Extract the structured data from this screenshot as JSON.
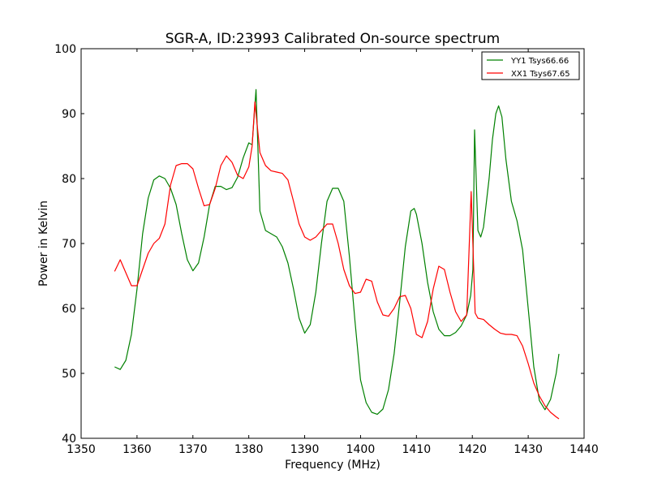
{
  "chart_data": {
    "type": "line",
    "title": "SGR-A, ID:23993 Calibrated On-source spectrum",
    "xlabel": "Frequency (MHz)",
    "ylabel": "Power in Kelvin",
    "xlim": [
      1350,
      1440
    ],
    "ylim": [
      40,
      100
    ],
    "xticks": [
      1350,
      1360,
      1370,
      1380,
      1390,
      1400,
      1410,
      1420,
      1430,
      1440
    ],
    "yticks": [
      40,
      50,
      60,
      70,
      80,
      90,
      100
    ],
    "grid": false,
    "legend_position": "top-right",
    "series": [
      {
        "name": "YY1 Tsys66.66",
        "color": "#008000",
        "points": [
          [
            1356,
            51.0
          ],
          [
            1357,
            50.6
          ],
          [
            1358,
            52.0
          ],
          [
            1359,
            56.0
          ],
          [
            1360,
            63.0
          ],
          [
            1361,
            71.5
          ],
          [
            1362,
            77.0
          ],
          [
            1363,
            79.8
          ],
          [
            1364,
            80.4
          ],
          [
            1365,
            80.0
          ],
          [
            1366,
            78.5
          ],
          [
            1367,
            76.0
          ],
          [
            1368,
            71.5
          ],
          [
            1369,
            67.5
          ],
          [
            1370,
            65.8
          ],
          [
            1371,
            67.0
          ],
          [
            1372,
            71.0
          ],
          [
            1373,
            76.0
          ],
          [
            1374,
            78.8
          ],
          [
            1375,
            78.8
          ],
          [
            1376,
            78.3
          ],
          [
            1377,
            78.6
          ],
          [
            1378,
            80.2
          ],
          [
            1379,
            83.2
          ],
          [
            1380,
            85.5
          ],
          [
            1380.6,
            85.2
          ],
          [
            1381.3,
            93.7
          ],
          [
            1382,
            75.0
          ],
          [
            1383,
            72.0
          ],
          [
            1384,
            71.5
          ],
          [
            1385,
            71.0
          ],
          [
            1386,
            69.5
          ],
          [
            1387,
            67.0
          ],
          [
            1388,
            63.0
          ],
          [
            1389,
            58.5
          ],
          [
            1390,
            56.2
          ],
          [
            1391,
            57.5
          ],
          [
            1392,
            62.5
          ],
          [
            1393,
            70.0
          ],
          [
            1394,
            76.5
          ],
          [
            1395,
            78.5
          ],
          [
            1396,
            78.5
          ],
          [
            1397,
            76.5
          ],
          [
            1398,
            68.0
          ],
          [
            1399,
            58.0
          ],
          [
            1400,
            49.0
          ],
          [
            1401,
            45.5
          ],
          [
            1402,
            44.0
          ],
          [
            1403,
            43.7
          ],
          [
            1404,
            44.5
          ],
          [
            1405,
            47.5
          ],
          [
            1406,
            53.0
          ],
          [
            1407,
            61.0
          ],
          [
            1408,
            69.5
          ],
          [
            1409,
            75.0
          ],
          [
            1409.6,
            75.4
          ],
          [
            1410,
            74.5
          ],
          [
            1411,
            70.0
          ],
          [
            1412,
            64.0
          ],
          [
            1413,
            59.5
          ],
          [
            1414,
            56.8
          ],
          [
            1415,
            55.8
          ],
          [
            1416,
            55.8
          ],
          [
            1417,
            56.3
          ],
          [
            1418,
            57.3
          ],
          [
            1419,
            59.0
          ],
          [
            1419.7,
            62.0
          ],
          [
            1420.1,
            66.0
          ],
          [
            1420.4,
            87.5
          ],
          [
            1421,
            72.0
          ],
          [
            1421.5,
            71.0
          ],
          [
            1422,
            72.5
          ],
          [
            1423,
            80.0
          ],
          [
            1423.6,
            86.0
          ],
          [
            1424.2,
            90.0
          ],
          [
            1424.7,
            91.2
          ],
          [
            1425.3,
            89.5
          ],
          [
            1426,
            83.0
          ],
          [
            1427,
            76.5
          ],
          [
            1428,
            73.5
          ],
          [
            1429,
            69.0
          ],
          [
            1430,
            60.0
          ],
          [
            1431,
            51.0
          ],
          [
            1432,
            45.8
          ],
          [
            1433,
            44.4
          ],
          [
            1434,
            46.0
          ],
          [
            1435,
            50.0
          ],
          [
            1435.5,
            53.0
          ]
        ]
      },
      {
        "name": "XX1 Tsys67.65",
        "color": "#ff0000",
        "points": [
          [
            1356,
            65.7
          ],
          [
            1357,
            67.5
          ],
          [
            1358,
            65.5
          ],
          [
            1359,
            63.5
          ],
          [
            1360,
            63.5
          ],
          [
            1361,
            66.0
          ],
          [
            1362,
            68.5
          ],
          [
            1363,
            70.0
          ],
          [
            1364,
            70.8
          ],
          [
            1365,
            73.0
          ],
          [
            1366,
            79.0
          ],
          [
            1367,
            82.0
          ],
          [
            1368,
            82.3
          ],
          [
            1369,
            82.3
          ],
          [
            1370,
            81.5
          ],
          [
            1371,
            78.5
          ],
          [
            1372,
            75.8
          ],
          [
            1373,
            76.0
          ],
          [
            1374,
            78.5
          ],
          [
            1375,
            82.0
          ],
          [
            1376,
            83.5
          ],
          [
            1377,
            82.5
          ],
          [
            1378,
            80.5
          ],
          [
            1379,
            80.0
          ],
          [
            1380,
            81.8
          ],
          [
            1380.6,
            85.0
          ],
          [
            1381.1,
            91.8
          ],
          [
            1382,
            84.0
          ],
          [
            1383,
            82.0
          ],
          [
            1384,
            81.2
          ],
          [
            1385,
            81.0
          ],
          [
            1386,
            80.8
          ],
          [
            1387,
            79.8
          ],
          [
            1388,
            76.5
          ],
          [
            1389,
            73.0
          ],
          [
            1390,
            71.0
          ],
          [
            1391,
            70.5
          ],
          [
            1392,
            71.0
          ],
          [
            1393,
            72.0
          ],
          [
            1394,
            73.0
          ],
          [
            1395,
            73.0
          ],
          [
            1396,
            70.0
          ],
          [
            1397,
            66.0
          ],
          [
            1398,
            63.5
          ],
          [
            1399,
            62.3
          ],
          [
            1400,
            62.5
          ],
          [
            1401,
            64.5
          ],
          [
            1402,
            64.2
          ],
          [
            1403,
            61.0
          ],
          [
            1404,
            59.0
          ],
          [
            1405,
            58.8
          ],
          [
            1406,
            60.0
          ],
          [
            1407,
            61.8
          ],
          [
            1408,
            62.0
          ],
          [
            1409,
            60.0
          ],
          [
            1410,
            56.0
          ],
          [
            1411,
            55.5
          ],
          [
            1412,
            58.0
          ],
          [
            1413,
            63.0
          ],
          [
            1414,
            66.5
          ],
          [
            1415,
            66.0
          ],
          [
            1416,
            62.5
          ],
          [
            1417,
            59.5
          ],
          [
            1418,
            58.0
          ],
          [
            1419,
            59.0
          ],
          [
            1419.8,
            78.0
          ],
          [
            1420.5,
            59.3
          ],
          [
            1421,
            58.5
          ],
          [
            1422,
            58.3
          ],
          [
            1423,
            57.5
          ],
          [
            1424,
            56.8
          ],
          [
            1425,
            56.2
          ],
          [
            1426,
            56.0
          ],
          [
            1427,
            56.0
          ],
          [
            1428,
            55.8
          ],
          [
            1429,
            54.2
          ],
          [
            1430,
            51.5
          ],
          [
            1431,
            48.5
          ],
          [
            1432,
            46.5
          ],
          [
            1433,
            45.0
          ],
          [
            1434,
            44.0
          ],
          [
            1435,
            43.3
          ],
          [
            1435.5,
            43.0
          ]
        ]
      }
    ]
  }
}
